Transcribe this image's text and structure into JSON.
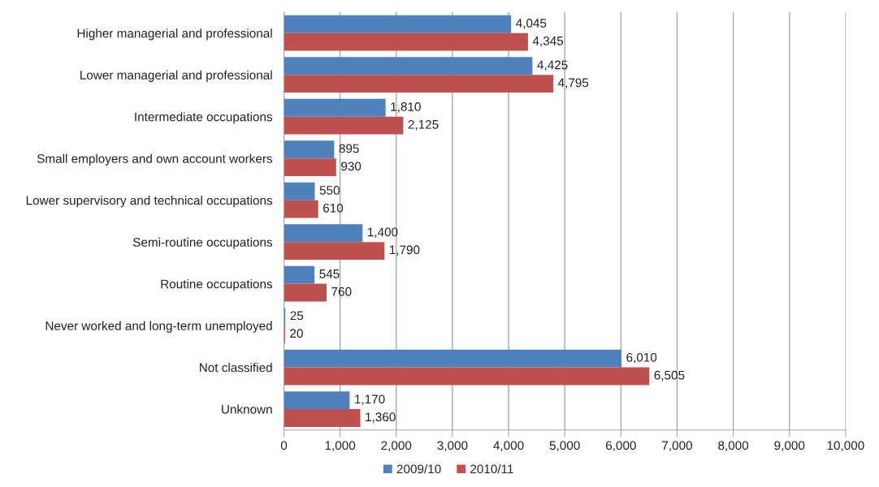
{
  "chart_data": {
    "type": "bar",
    "orientation": "horizontal",
    "categories": [
      "Higher managerial and professional",
      "Lower managerial and professional",
      "Intermediate occupations",
      "Small employers and own account workers",
      "Lower supervisory and technical occupations",
      "Semi-routine occupations",
      "Routine occupations",
      "Never worked and long-term unemployed",
      "Not classified",
      "Unknown"
    ],
    "series": [
      {
        "name": "2009/10",
        "color": "#4f81bd",
        "values": [
          4045,
          4425,
          1810,
          895,
          550,
          1400,
          545,
          25,
          6010,
          1170
        ],
        "value_labels": [
          "4,045",
          "4,425",
          "1,810",
          "895",
          "550",
          "1,400",
          "545",
          "25",
          "6,010",
          "1,170"
        ]
      },
      {
        "name": "2010/11",
        "color": "#c0504d",
        "values": [
          4345,
          4795,
          2125,
          930,
          610,
          1790,
          760,
          20,
          6505,
          1360
        ],
        "value_labels": [
          "4,345",
          "4,795",
          "2,125",
          "930",
          "610",
          "1,790",
          "760",
          "20",
          "6,505",
          "1,360"
        ]
      }
    ],
    "xlim": [
      0,
      10000
    ],
    "xticks": [
      0,
      {
        "value": 1000,
        "label": "1,000"
      },
      {
        "value": 2000,
        "label": "2,000"
      },
      {
        "value": 3000,
        "label": "3,000"
      },
      {
        "value": 4000,
        "label": "4,000"
      },
      {
        "value": 5000,
        "label": "5,000"
      },
      {
        "value": 6000,
        "label": "6,000"
      },
      {
        "value": 7000,
        "label": "7,000"
      },
      {
        "value": 8000,
        "label": "8,000"
      },
      {
        "value": 9000,
        "label": "9,000"
      },
      {
        "value": 10000,
        "label": "10,000"
      }
    ],
    "grid": "x",
    "legend": "bottom"
  }
}
